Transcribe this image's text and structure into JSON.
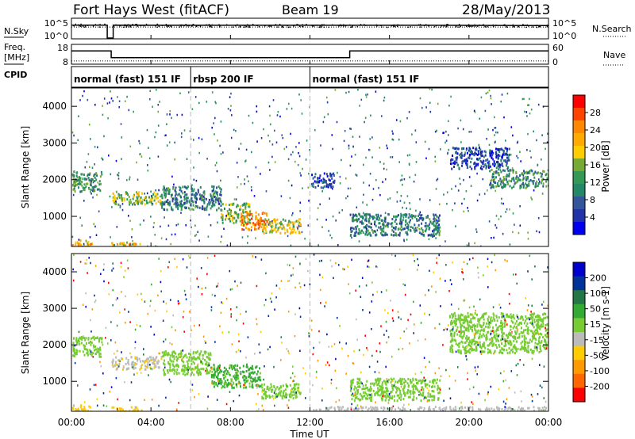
{
  "header": {
    "station": "Fort Hays West (fitACF)",
    "beam": "Beam 19",
    "date": "28/May/2013"
  },
  "labels": {
    "nsky": "N.Sky",
    "nsearch": "N.Search",
    "freq_line1": "Freq.",
    "freq_line2": "[MHz]",
    "nave": "Nave",
    "cpid": "CPID",
    "time_axis": "Time UT"
  },
  "noise_axis": {
    "left_ticks": [
      "10^5",
      "10^0"
    ],
    "right_ticks": [
      "10^5",
      "10^0"
    ]
  },
  "freq_axis": {
    "left_ticks": [
      "18",
      "8"
    ],
    "right_ticks": [
      "60",
      "0"
    ]
  },
  "cpid_segments": [
    {
      "start_hour": 0,
      "end_hour": 6,
      "label": "normal (fast) 151 IF"
    },
    {
      "start_hour": 6,
      "end_hour": 12,
      "label": "rbsp 200 IF"
    },
    {
      "start_hour": 12,
      "end_hour": 24,
      "label": "normal (fast) 151 IF"
    }
  ],
  "x_ticks": [
    "00:00",
    "04:00",
    "08:00",
    "12:00",
    "16:00",
    "20:00",
    "00:00"
  ],
  "power_colorbar": {
    "title": "Power [dB]",
    "ticks": [
      "28",
      "24",
      "20",
      "16",
      "12",
      "8",
      "4"
    ],
    "colors": [
      "#ff0000",
      "#ff4400",
      "#ff8800",
      "#ffaa00",
      "#ffcc00",
      "#77aa33",
      "#339955",
      "#228866",
      "#335599",
      "#2233aa",
      "#0000ee"
    ]
  },
  "velocity_colorbar": {
    "title": "Velocity [m s-1]",
    "ticks": [
      "200",
      "100",
      "50",
      "15",
      "-15",
      "-50",
      "-100",
      "-200"
    ],
    "colors": [
      "#0000cc",
      "#003399",
      "#227744",
      "#33aa33",
      "#77cc33",
      "#bbbbbb",
      "#ffcc00",
      "#ff9900",
      "#ff6600",
      "#ff0000"
    ]
  },
  "chart_data": [
    {
      "type": "line",
      "title": "Noise",
      "ylabel": "N.Sky",
      "y2label": "N.Search",
      "y_scale": "log",
      "ylim": [
        1,
        100000
      ],
      "x": [
        0,
        1.8,
        1.8,
        2.1,
        2.1,
        6,
        12,
        18,
        24
      ],
      "series": [
        {
          "name": "N.Sky",
          "values": [
            2500,
            2500,
            1,
            1,
            2500,
            2300,
            2300,
            2300,
            2000
          ]
        }
      ]
    },
    {
      "type": "line",
      "ylabel": "Freq. [MHz]",
      "y2label": "Nave",
      "ylim": [
        8,
        18
      ],
      "x": [
        0,
        2,
        2,
        14,
        14,
        24
      ],
      "series": [
        {
          "name": "Freq.",
          "values": [
            15,
            15,
            11,
            11,
            15,
            15
          ]
        },
        {
          "name": "Nave",
          "values": [
            9,
            9,
            9,
            9,
            9,
            9
          ]
        }
      ]
    },
    {
      "type": "heatmap",
      "title": "Power",
      "ylabel": "Slant Range [km]",
      "xlabel": "Time UT",
      "xlim": [
        0,
        24
      ],
      "ylim": [
        180,
        4500
      ],
      "yticks": [
        1000,
        2000,
        3000,
        4000
      ],
      "colorbar_label": "Power [dB]",
      "colorbar_ticks": [
        4,
        8,
        12,
        16,
        20,
        24,
        28
      ],
      "echo_regions": [
        {
          "t0": 0.0,
          "t1": 1.5,
          "r0": 1700,
          "r1": 2250,
          "power": 12
        },
        {
          "t0": 0.0,
          "t1": 1.0,
          "r0": 180,
          "r1": 380,
          "power": 22
        },
        {
          "t0": 2.0,
          "t1": 3.5,
          "r0": 180,
          "r1": 330,
          "power": 20
        },
        {
          "t0": 2.0,
          "t1": 4.5,
          "r0": 1350,
          "r1": 1700,
          "power": 16
        },
        {
          "t0": 4.5,
          "t1": 7.5,
          "r0": 1200,
          "r1": 1850,
          "power": 10
        },
        {
          "t0": 7.5,
          "t1": 9.0,
          "r0": 850,
          "r1": 1400,
          "power": 16
        },
        {
          "t0": 8.5,
          "t1": 9.8,
          "r0": 650,
          "r1": 1150,
          "power": 24
        },
        {
          "t0": 9.5,
          "t1": 11.5,
          "r0": 560,
          "r1": 960,
          "power": 18
        },
        {
          "t0": 12.0,
          "t1": 13.2,
          "r0": 1800,
          "r1": 2200,
          "power": 6
        },
        {
          "t0": 14.0,
          "t1": 18.5,
          "r0": 500,
          "r1": 1100,
          "power": 10
        },
        {
          "t0": 19.0,
          "t1": 22.0,
          "r0": 2300,
          "r1": 2900,
          "power": 6
        },
        {
          "t0": 21.0,
          "t1": 24.0,
          "r0": 1800,
          "r1": 2300,
          "power": 12
        }
      ]
    },
    {
      "type": "heatmap",
      "title": "Velocity",
      "ylabel": "Slant Range [km]",
      "xlabel": "Time UT",
      "xlim": [
        0,
        24
      ],
      "ylim": [
        180,
        4500
      ],
      "yticks": [
        1000,
        2000,
        3000,
        4000
      ],
      "colorbar_label": "Velocity [m s-1]",
      "colorbar_ticks": [
        -200,
        -100,
        -50,
        -15,
        15,
        50,
        100,
        200
      ],
      "echo_regions": [
        {
          "t0": 0.0,
          "t1": 1.5,
          "r0": 1700,
          "r1": 2250,
          "velocity": 0
        },
        {
          "t0": 0.0,
          "t1": 1.0,
          "r0": 180,
          "r1": 380,
          "velocity": -60
        },
        {
          "t0": 2.0,
          "t1": 3.5,
          "r0": 180,
          "r1": 330,
          "velocity": -60
        },
        {
          "t0": 2.0,
          "t1": 4.5,
          "r0": 1350,
          "r1": 1700,
          "velocity": -40
        },
        {
          "t0": 4.5,
          "t1": 7.0,
          "r0": 1200,
          "r1": 1850,
          "velocity": 0
        },
        {
          "t0": 7.0,
          "t1": 9.5,
          "r0": 850,
          "r1": 1500,
          "velocity": 25
        },
        {
          "t0": 9.5,
          "t1": 11.5,
          "r0": 560,
          "r1": 960,
          "velocity": 0
        },
        {
          "t0": 14.0,
          "t1": 18.5,
          "r0": 500,
          "r1": 1100,
          "velocity": 0
        },
        {
          "t0": 12.0,
          "t1": 24.0,
          "r0": 180,
          "r1": 330,
          "velocity": -30
        },
        {
          "t0": 19.0,
          "t1": 24.0,
          "r0": 1800,
          "r1": 2900,
          "velocity": 0
        }
      ]
    }
  ]
}
